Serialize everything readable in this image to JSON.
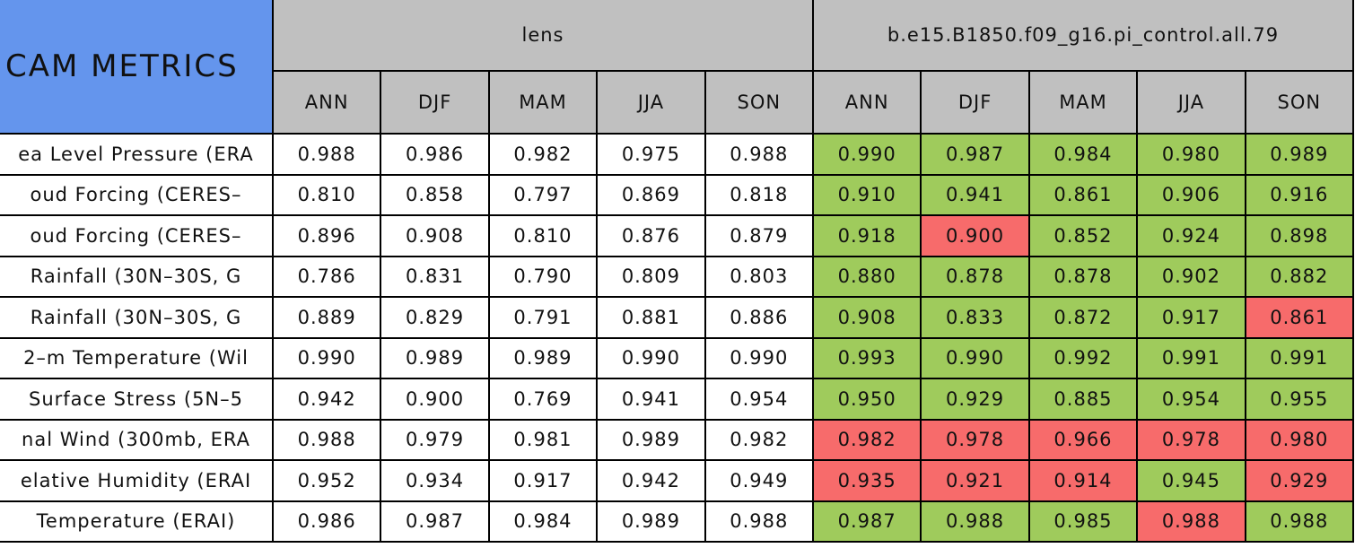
{
  "table": {
    "title": "CAM METRICS",
    "groups": [
      {
        "name": "lens",
        "columns": [
          "ANN",
          "DJF",
          "MAM",
          "JJA",
          "SON"
        ]
      },
      {
        "name": "b.e15.B1850.f09_g16.pi_control.all.79",
        "columns": [
          "ANN",
          "DJF",
          "MAM",
          "JJA",
          "SON"
        ]
      }
    ],
    "rows": [
      {
        "label": "ea Level Pressure (ERA",
        "cells": [
          "0.988",
          "0.986",
          "0.982",
          "0.975",
          "0.988",
          "0.990",
          "0.987",
          "0.984",
          "0.980",
          "0.989"
        ],
        "colors": [
          "#ffffff",
          "#ffffff",
          "#ffffff",
          "#ffffff",
          "#ffffff",
          "#9fcb5c",
          "#9fcb5c",
          "#9fcb5c",
          "#9fcb5c",
          "#9fcb5c"
        ]
      },
      {
        "label": "oud Forcing (CERES–",
        "cells": [
          "0.810",
          "0.858",
          "0.797",
          "0.869",
          "0.818",
          "0.910",
          "0.941",
          "0.861",
          "0.906",
          "0.916"
        ],
        "colors": [
          "#ffffff",
          "#ffffff",
          "#ffffff",
          "#ffffff",
          "#ffffff",
          "#9fcb5c",
          "#9fcb5c",
          "#9fcb5c",
          "#9fcb5c",
          "#9fcb5c"
        ]
      },
      {
        "label": "oud Forcing (CERES–",
        "cells": [
          "0.896",
          "0.908",
          "0.810",
          "0.876",
          "0.879",
          "0.918",
          "0.900",
          "0.852",
          "0.924",
          "0.898"
        ],
        "colors": [
          "#ffffff",
          "#ffffff",
          "#ffffff",
          "#ffffff",
          "#ffffff",
          "#9fcb5c",
          "#f76b6b",
          "#9fcb5c",
          "#9fcb5c",
          "#9fcb5c"
        ]
      },
      {
        "label": "Rainfall (30N–30S, G",
        "cells": [
          "0.786",
          "0.831",
          "0.790",
          "0.809",
          "0.803",
          "0.880",
          "0.878",
          "0.878",
          "0.902",
          "0.882"
        ],
        "colors": [
          "#ffffff",
          "#ffffff",
          "#ffffff",
          "#ffffff",
          "#ffffff",
          "#9fcb5c",
          "#9fcb5c",
          "#9fcb5c",
          "#9fcb5c",
          "#9fcb5c"
        ]
      },
      {
        "label": "Rainfall (30N–30S, G",
        "cells": [
          "0.889",
          "0.829",
          "0.791",
          "0.881",
          "0.886",
          "0.908",
          "0.833",
          "0.872",
          "0.917",
          "0.861"
        ],
        "colors": [
          "#ffffff",
          "#ffffff",
          "#ffffff",
          "#ffffff",
          "#ffffff",
          "#9fcb5c",
          "#9fcb5c",
          "#9fcb5c",
          "#9fcb5c",
          "#f76b6b"
        ]
      },
      {
        "label": "2–m Temperature (Wil",
        "cells": [
          "0.990",
          "0.989",
          "0.989",
          "0.990",
          "0.990",
          "0.993",
          "0.990",
          "0.992",
          "0.991",
          "0.991"
        ],
        "colors": [
          "#ffffff",
          "#ffffff",
          "#ffffff",
          "#ffffff",
          "#ffffff",
          "#9fcb5c",
          "#9fcb5c",
          "#9fcb5c",
          "#9fcb5c",
          "#9fcb5c"
        ]
      },
      {
        "label": "Surface Stress (5N–5",
        "cells": [
          "0.942",
          "0.900",
          "0.769",
          "0.941",
          "0.954",
          "0.950",
          "0.929",
          "0.885",
          "0.954",
          "0.955"
        ],
        "colors": [
          "#ffffff",
          "#ffffff",
          "#ffffff",
          "#ffffff",
          "#ffffff",
          "#9fcb5c",
          "#9fcb5c",
          "#9fcb5c",
          "#9fcb5c",
          "#9fcb5c"
        ]
      },
      {
        "label": "nal Wind (300mb, ERA",
        "cells": [
          "0.988",
          "0.979",
          "0.981",
          "0.989",
          "0.982",
          "0.982",
          "0.978",
          "0.966",
          "0.978",
          "0.980"
        ],
        "colors": [
          "#ffffff",
          "#ffffff",
          "#ffffff",
          "#ffffff",
          "#ffffff",
          "#f76b6b",
          "#f76b6b",
          "#f76b6b",
          "#f76b6b",
          "#f76b6b"
        ]
      },
      {
        "label": "elative Humidity (ERAI",
        "cells": [
          "0.952",
          "0.934",
          "0.917",
          "0.942",
          "0.949",
          "0.935",
          "0.921",
          "0.914",
          "0.945",
          "0.929"
        ],
        "colors": [
          "#ffffff",
          "#ffffff",
          "#ffffff",
          "#ffffff",
          "#ffffff",
          "#f76b6b",
          "#f76b6b",
          "#f76b6b",
          "#9fcb5c",
          "#f76b6b"
        ]
      },
      {
        "label": "Temperature (ERAI)",
        "cells": [
          "0.986",
          "0.987",
          "0.984",
          "0.989",
          "0.988",
          "0.987",
          "0.988",
          "0.985",
          "0.988",
          "0.988"
        ],
        "colors": [
          "#ffffff",
          "#ffffff",
          "#ffffff",
          "#ffffff",
          "#ffffff",
          "#9fcb5c",
          "#9fcb5c",
          "#9fcb5c",
          "#f76b6b",
          "#9fcb5c"
        ]
      }
    ]
  }
}
